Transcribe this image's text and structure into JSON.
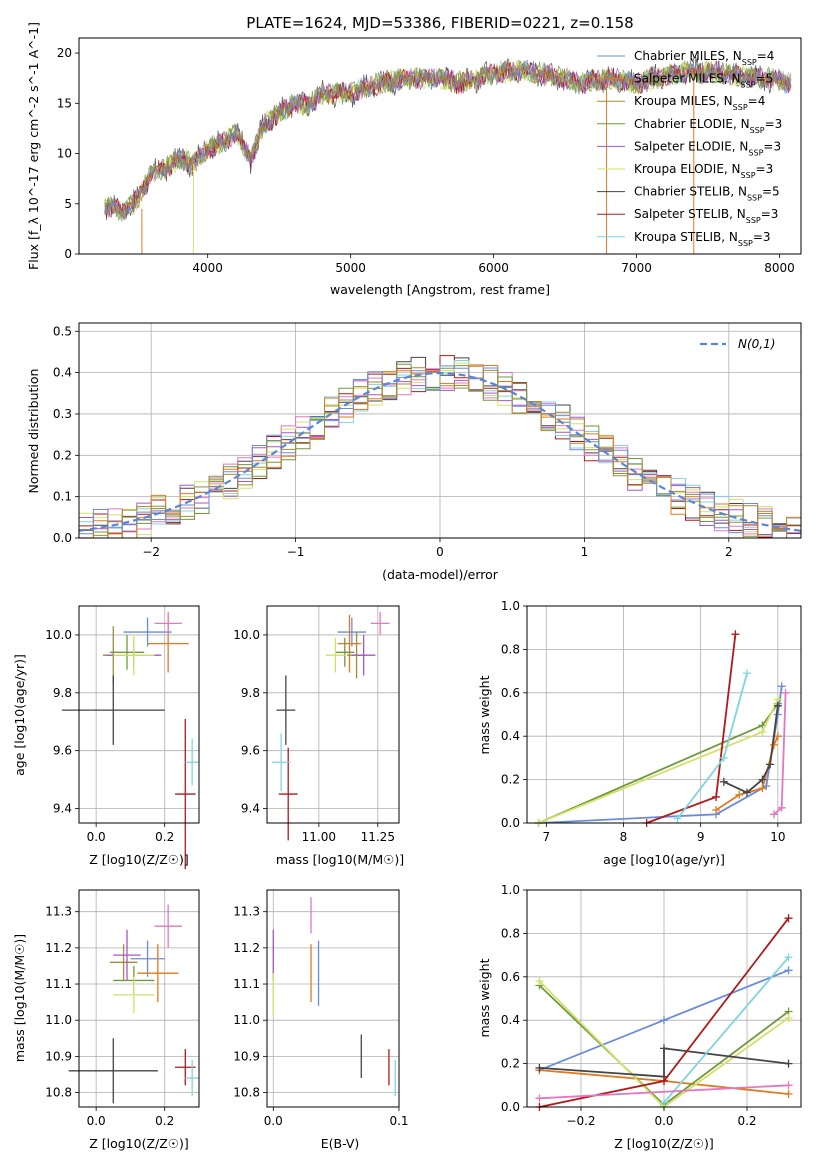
{
  "figure_title": "PLATE=1624, MJD=53386, FIBERID=0221, z=0.158",
  "model_colors": {
    "Chabrier MILES": "#6b8cd8",
    "Salpeter MILES": "#e07a1f",
    "Kroupa MILES": "#a08c34",
    "Chabrier ELODIE": "#6e9a3a",
    "Salpeter ELODIE": "#a855c8",
    "Kroupa ELODIE": "#d4e06a",
    "Chabrier STELIB": "#444444",
    "Salpeter STELIB": "#b01a1a",
    "Kroupa STELIB": "#7fd4e0",
    "pink": "#e377c2"
  },
  "spectrum_legend": [
    {
      "name": "Chabrier MILES",
      "nssp": "4"
    },
    {
      "name": "Salpeter MILES",
      "nssp": "5"
    },
    {
      "name": "Kroupa MILES",
      "nssp": "4"
    },
    {
      "name": "Chabrier ELODIE",
      "nssp": "3"
    },
    {
      "name": "Salpeter ELODIE",
      "nssp": "3"
    },
    {
      "name": "Kroupa ELODIE",
      "nssp": "3"
    },
    {
      "name": "Chabrier STELIB",
      "nssp": "5"
    },
    {
      "name": "Salpeter STELIB",
      "nssp": "3"
    },
    {
      "name": "Kroupa STELIB",
      "nssp": "3"
    }
  ],
  "chart_data": [
    {
      "id": "spectrum",
      "type": "line",
      "xlabel": "wavelength [Angstrom, rest frame]",
      "ylabel": "Flux [f_λ 10^-17 erg cm^-2 s^-1 A^-1]",
      "xlim": [
        3100,
        8150
      ],
      "ylim": [
        0,
        21.5
      ],
      "xticks": [
        4000,
        5000,
        6000,
        7000,
        8000
      ],
      "yticks": [
        0,
        5,
        10,
        15,
        20
      ],
      "approx_points": {
        "x": [
          3280,
          3400,
          3500,
          3600,
          3700,
          3800,
          3900,
          4000,
          4100,
          4200,
          4300,
          4400,
          4500,
          4600,
          4700,
          4800,
          5000,
          5200,
          5400,
          5600,
          5800,
          6000,
          6200,
          6400,
          6600,
          6800,
          7000,
          7200,
          7400,
          7600,
          7800,
          8000,
          8080
        ],
        "y": [
          4.8,
          4.4,
          5.2,
          8.0,
          8.5,
          9.5,
          9.0,
          10.5,
          11.0,
          12.0,
          9.5,
          13.0,
          14.0,
          15.0,
          14.8,
          16.0,
          16.0,
          17.0,
          17.5,
          17.5,
          17.0,
          18.0,
          18.2,
          17.8,
          17.0,
          17.5,
          17.0,
          17.8,
          18.2,
          18.0,
          17.6,
          17.3,
          17.0
        ]
      }
    },
    {
      "id": "residual-histogram",
      "type": "bar",
      "xlabel": "(data-model)/error",
      "ylabel": "Normed distribution",
      "xlim": [
        -2.5,
        2.5
      ],
      "ylim": [
        0,
        0.52
      ],
      "xticks": [
        -2,
        -1,
        0,
        1,
        2
      ],
      "yticks": [
        0.0,
        0.1,
        0.2,
        0.3,
        0.4,
        0.5
      ],
      "legend": "N(0,1)",
      "reference_curve": "standard normal pdf",
      "bin_width": 0.1
    },
    {
      "id": "age-vs-Z",
      "type": "scatter",
      "xlabel": "Z [log10(Z/Z☉)]",
      "ylabel": "age [log10(age/yr)]",
      "xlim": [
        -0.05,
        0.3
      ],
      "ylim": [
        9.35,
        10.1
      ],
      "xticks": [
        0.0,
        0.2
      ],
      "yticks": [
        9.4,
        9.6,
        9.8,
        10.0
      ],
      "points": [
        {
          "model": "Chabrier MILES",
          "x": 0.15,
          "y": 10.01,
          "xerr": 0.07,
          "yerr": 0.05
        },
        {
          "model": "Salpeter MILES",
          "x": 0.21,
          "y": 9.97,
          "xerr": 0.06,
          "yerr": 0.1
        },
        {
          "model": "Kroupa MILES",
          "x": 0.05,
          "y": 9.93,
          "xerr": 0.03,
          "yerr": 0.1
        },
        {
          "model": "Chabrier ELODIE",
          "x": 0.09,
          "y": 9.94,
          "xerr": 0.05,
          "yerr": 0.06
        },
        {
          "model": "Salpeter ELODIE",
          "x": 0.11,
          "y": 9.93,
          "xerr": 0.08,
          "yerr": 0.05
        },
        {
          "model": "Kroupa ELODIE",
          "x": 0.11,
          "y": 9.93,
          "xerr": 0.06,
          "yerr": 0.07
        },
        {
          "model": "Chabrier STELIB",
          "x": 0.05,
          "y": 9.74,
          "xerr": 0.15,
          "yerr": 0.12
        },
        {
          "model": "Salpeter STELIB",
          "x": 0.26,
          "y": 9.45,
          "xerr": 0.03,
          "yerr": 0.26
        },
        {
          "model": "Kroupa STELIB",
          "x": 0.28,
          "y": 9.56,
          "xerr": 0.02,
          "yerr": 0.08
        },
        {
          "model": "pink",
          "x": 0.21,
          "y": 10.04,
          "xerr": 0.04,
          "yerr": 0.04
        }
      ]
    },
    {
      "id": "age-vs-mass",
      "type": "scatter",
      "xlabel": "mass [log10(M/M☉)]",
      "ylabel": "",
      "xlim": [
        10.78,
        11.34
      ],
      "ylim": [
        9.35,
        10.1
      ],
      "xticks": [
        11.0,
        11.25
      ],
      "yticks": [
        9.4,
        9.6,
        9.8,
        10.0
      ],
      "points": [
        {
          "model": "Chabrier MILES",
          "x": 11.14,
          "y": 10.01,
          "xerr": 0.06,
          "yerr": 0.05
        },
        {
          "model": "Salpeter MILES",
          "x": 11.13,
          "y": 9.97,
          "xerr": 0.05,
          "yerr": 0.1
        },
        {
          "model": "Kroupa MILES",
          "x": 11.16,
          "y": 9.93,
          "xerr": 0.04,
          "yerr": 0.08
        },
        {
          "model": "Chabrier ELODIE",
          "x": 11.11,
          "y": 9.94,
          "xerr": 0.04,
          "yerr": 0.05
        },
        {
          "model": "Salpeter ELODIE",
          "x": 11.19,
          "y": 9.93,
          "xerr": 0.05,
          "yerr": 0.07
        },
        {
          "model": "Kroupa ELODIE",
          "x": 11.07,
          "y": 9.93,
          "xerr": 0.04,
          "yerr": 0.06
        },
        {
          "model": "Chabrier STELIB",
          "x": 10.86,
          "y": 9.74,
          "xerr": 0.04,
          "yerr": 0.12
        },
        {
          "model": "Salpeter STELIB",
          "x": 10.87,
          "y": 9.45,
          "xerr": 0.04,
          "yerr": 0.16
        },
        {
          "model": "Kroupa STELIB",
          "x": 10.84,
          "y": 9.56,
          "xerr": 0.04,
          "yerr": 0.1
        },
        {
          "model": "pink",
          "x": 11.26,
          "y": 10.04,
          "xerr": 0.04,
          "yerr": 0.04
        }
      ]
    },
    {
      "id": "mass-weight-vs-age",
      "type": "line",
      "xlabel": "age [log10(age/yr)]",
      "ylabel": "mass weight",
      "xlim": [
        6.75,
        10.3
      ],
      "ylim": [
        0,
        1.0
      ],
      "xticks": [
        7,
        8,
        9,
        10
      ],
      "yticks": [
        0.0,
        0.2,
        0.4,
        0.6,
        0.8,
        1.0
      ],
      "series": [
        {
          "model": "Chabrier MILES",
          "x": [
            6.9,
            9.2,
            9.85,
            10.0,
            10.05
          ],
          "y": [
            0.0,
            0.04,
            0.17,
            0.5,
            0.63
          ]
        },
        {
          "model": "Salpeter MILES",
          "x": [
            9.2,
            9.5,
            9.8,
            9.95,
            10.0
          ],
          "y": [
            0.06,
            0.13,
            0.16,
            0.36,
            0.4
          ]
        },
        {
          "model": "Chabrier ELODIE",
          "x": [
            6.9,
            9.8,
            10.0
          ],
          "y": [
            0.0,
            0.45,
            0.55
          ]
        },
        {
          "model": "Kroupa ELODIE",
          "x": [
            6.9,
            9.8,
            10.0
          ],
          "y": [
            0.0,
            0.42,
            0.57
          ]
        },
        {
          "model": "Chabrier STELIB",
          "x": [
            9.3,
            9.6,
            9.8,
            9.9,
            10.0
          ],
          "y": [
            0.19,
            0.14,
            0.2,
            0.27,
            0.54
          ]
        },
        {
          "model": "Salpeter STELIB",
          "x": [
            8.3,
            9.2,
            9.45
          ],
          "y": [
            0.0,
            0.12,
            0.87
          ]
        },
        {
          "model": "Kroupa STELIB",
          "x": [
            8.7,
            9.3,
            9.6
          ],
          "y": [
            0.02,
            0.3,
            0.69
          ]
        },
        {
          "model": "pink",
          "x": [
            9.95,
            10.05,
            10.1
          ],
          "y": [
            0.04,
            0.07,
            0.6
          ]
        }
      ]
    },
    {
      "id": "mass-vs-Z",
      "type": "scatter",
      "xlabel": "Z [log10(Z/Z☉)]",
      "ylabel": "mass [log10(M/M☉)]",
      "xlim": [
        -0.05,
        0.3
      ],
      "ylim": [
        10.76,
        11.36
      ],
      "xticks": [
        0.0,
        0.2
      ],
      "yticks": [
        10.8,
        10.9,
        11.0,
        11.1,
        11.2,
        11.3
      ],
      "points": [
        {
          "model": "Chabrier MILES",
          "x": 0.15,
          "y": 11.17,
          "xerr": 0.05,
          "yerr": 0.05
        },
        {
          "model": "Salpeter MILES",
          "x": 0.18,
          "y": 11.13,
          "xerr": 0.06,
          "yerr": 0.08
        },
        {
          "model": "Kroupa MILES",
          "x": 0.08,
          "y": 11.16,
          "xerr": 0.04,
          "yerr": 0.05
        },
        {
          "model": "Chabrier ELODIE",
          "x": 0.11,
          "y": 11.11,
          "xerr": 0.06,
          "yerr": 0.04
        },
        {
          "model": "Salpeter ELODIE",
          "x": 0.09,
          "y": 11.18,
          "xerr": 0.04,
          "yerr": 0.07
        },
        {
          "model": "Kroupa ELODIE",
          "x": 0.11,
          "y": 11.07,
          "xerr": 0.06,
          "yerr": 0.05
        },
        {
          "model": "Chabrier STELIB",
          "x": 0.05,
          "y": 10.86,
          "xerr": 0.13,
          "yerr": 0.09
        },
        {
          "model": "Salpeter STELIB",
          "x": 0.26,
          "y": 10.87,
          "xerr": 0.03,
          "yerr": 0.05
        },
        {
          "model": "Kroupa STELIB",
          "x": 0.28,
          "y": 10.84,
          "xerr": 0.02,
          "yerr": 0.05
        },
        {
          "model": "pink",
          "x": 0.21,
          "y": 11.26,
          "xerr": 0.04,
          "yerr": 0.06
        }
      ]
    },
    {
      "id": "mass-vs-ebv",
      "type": "scatter",
      "xlabel": "E(B-V)",
      "ylabel": "",
      "xlim": [
        -0.005,
        0.1
      ],
      "ylim": [
        10.76,
        11.36
      ],
      "xticks": [
        0.0,
        0.1
      ],
      "yticks": [
        10.8,
        10.9,
        11.0,
        11.1,
        11.2,
        11.3
      ],
      "points": [
        {
          "model": "Salpeter ELODIE",
          "x": 0.0,
          "y": 11.18,
          "xerr": 0,
          "yerr": 0.07
        },
        {
          "model": "Kroupa ELODIE",
          "x": 0.0,
          "y": 11.07,
          "xerr": 0,
          "yerr": 0.06
        },
        {
          "model": "pink",
          "x": 0.03,
          "y": 11.29,
          "xerr": 0,
          "yerr": 0.05
        },
        {
          "model": "Salpeter MILES",
          "x": 0.03,
          "y": 11.13,
          "xerr": 0,
          "yerr": 0.08
        },
        {
          "model": "Chabrier MILES",
          "x": 0.036,
          "y": 11.13,
          "xerr": 0,
          "yerr": 0.09
        },
        {
          "model": "Chabrier STELIB",
          "x": 0.07,
          "y": 10.9,
          "xerr": 0,
          "yerr": 0.06
        },
        {
          "model": "Salpeter STELIB",
          "x": 0.092,
          "y": 10.87,
          "xerr": 0,
          "yerr": 0.05
        },
        {
          "model": "Kroupa STELIB",
          "x": 0.097,
          "y": 10.84,
          "xerr": 0,
          "yerr": 0.05
        }
      ]
    },
    {
      "id": "mass-weight-vs-Z",
      "type": "line",
      "xlabel": "Z [log10(Z/Z☉)]",
      "ylabel": "mass weight",
      "xlim": [
        -0.33,
        0.33
      ],
      "ylim": [
        0,
        1.0
      ],
      "xticks": [
        -0.2,
        0.0,
        0.2
      ],
      "yticks": [
        0.0,
        0.2,
        0.4,
        0.6,
        0.8,
        1.0
      ],
      "series": [
        {
          "model": "Chabrier MILES",
          "x": [
            -0.3,
            0.0,
            0.3
          ],
          "y": [
            0.17,
            0.4,
            0.63
          ]
        },
        {
          "model": "Salpeter MILES",
          "x": [
            -0.3,
            0.0,
            0.3
          ],
          "y": [
            0.17,
            0.12,
            0.06
          ]
        },
        {
          "model": "Chabrier ELODIE",
          "x": [
            -0.3,
            0.0,
            0.3
          ],
          "y": [
            0.56,
            0.01,
            0.44
          ]
        },
        {
          "model": "Kroupa ELODIE",
          "x": [
            -0.3,
            0.0,
            0.3
          ],
          "y": [
            0.58,
            0.0,
            0.41
          ]
        },
        {
          "model": "Chabrier STELIB",
          "x": [
            -0.3,
            0.0,
            0.0,
            0.3
          ],
          "y": [
            0.18,
            0.14,
            0.27,
            0.2
          ]
        },
        {
          "model": "Salpeter STELIB",
          "x": [
            -0.3,
            0.0,
            0.3
          ],
          "y": [
            0.0,
            0.12,
            0.87
          ]
        },
        {
          "model": "Kroupa STELIB",
          "x": [
            0.0,
            0.3
          ],
          "y": [
            0.02,
            0.69
          ]
        },
        {
          "model": "pink",
          "x": [
            -0.3,
            0.3
          ],
          "y": [
            0.04,
            0.1
          ]
        }
      ]
    }
  ]
}
